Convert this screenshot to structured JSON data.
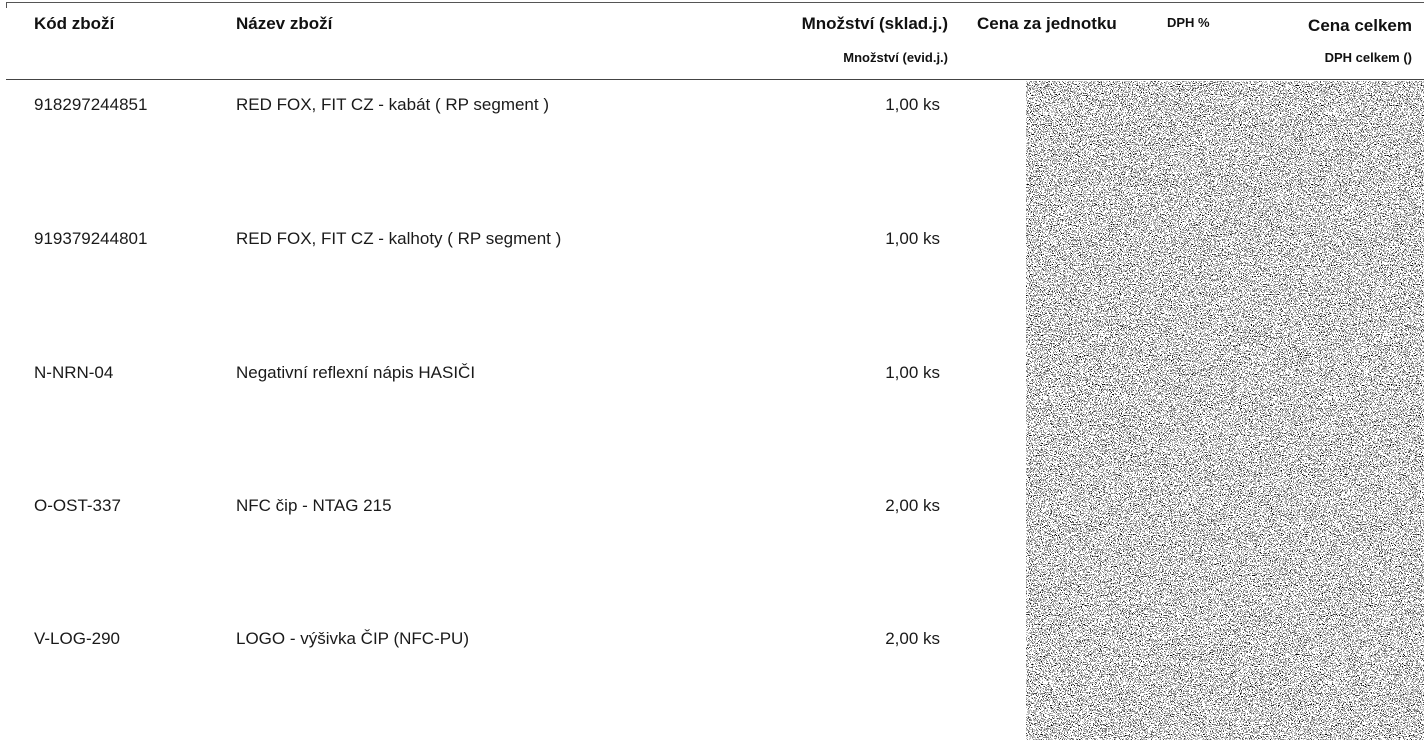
{
  "header": {
    "code": "Kód zboží",
    "name": "Název zboží",
    "qty_stock": "Množství (sklad.j.)",
    "qty_evid": "Množství (evid.j.)",
    "unit_price": "Cena za jednotku",
    "vat_pct": "DPH %",
    "total": "Cena celkem",
    "vat_total": "DPH celkem ()"
  },
  "rows": [
    {
      "code": "918297244851",
      "name": "RED FOX, FIT CZ - kabát ( RP segment )",
      "qty": "1,00 ks"
    },
    {
      "code": "919379244801",
      "name": "RED FOX, FIT CZ - kalhoty ( RP segment )",
      "qty": "1,00 ks"
    },
    {
      "code": "N-NRN-04",
      "name": "Negativní reflexní nápis HASIČI",
      "qty": "1,00 ks"
    },
    {
      "code": "O-OST-337",
      "name": "NFC čip -  NTAG 215",
      "qty": "2,00 ks"
    },
    {
      "code": "V-LOG-290",
      "name": "LOGO - výšivka ČIP (NFC-PU)",
      "qty": "2,00 ks"
    }
  ]
}
